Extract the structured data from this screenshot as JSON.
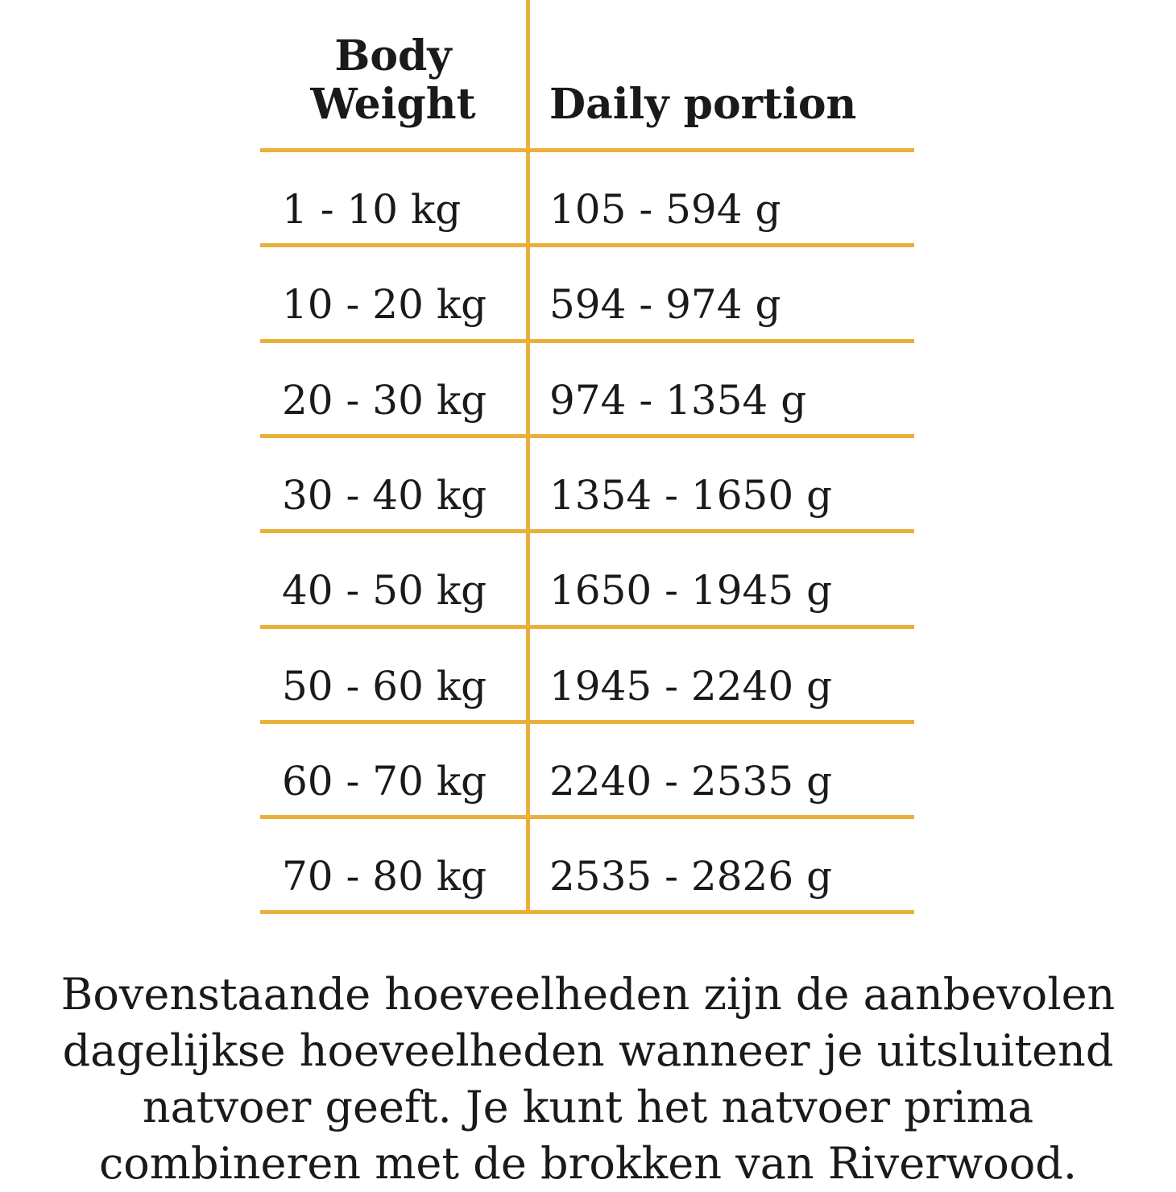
{
  "table": {
    "headers": {
      "body_weight_line1": "Body",
      "body_weight_line2": "Weight",
      "daily_portion": "Daily portion"
    },
    "rows": [
      {
        "weight": "1 - 10 kg",
        "portion": "105 - 594 g"
      },
      {
        "weight": "10 - 20 kg",
        "portion": "594 - 974 g"
      },
      {
        "weight": "20 - 30 kg",
        "portion": "974 - 1354 g"
      },
      {
        "weight": "30 - 40 kg",
        "portion": "1354 - 1650 g"
      },
      {
        "weight": "40 - 50 kg",
        "portion": "1650 - 1945 g"
      },
      {
        "weight": "50 - 60 kg",
        "portion": "1945 - 2240 g"
      },
      {
        "weight": "60 - 70 kg",
        "portion": "2240 - 2535 g"
      },
      {
        "weight": "70 - 80 kg",
        "portion": "2535 - 2826 g"
      }
    ],
    "rule_color": "#e9b03a"
  },
  "note": {
    "lines": [
      "Bovenstaande hoeveelheden zijn de aanbevolen",
      "dagelijkse hoeveelheden wanneer je uitsluitend",
      "natvoer geeft. Je kunt het natvoer prima",
      "combineren met de brokken van Riverwood."
    ]
  }
}
